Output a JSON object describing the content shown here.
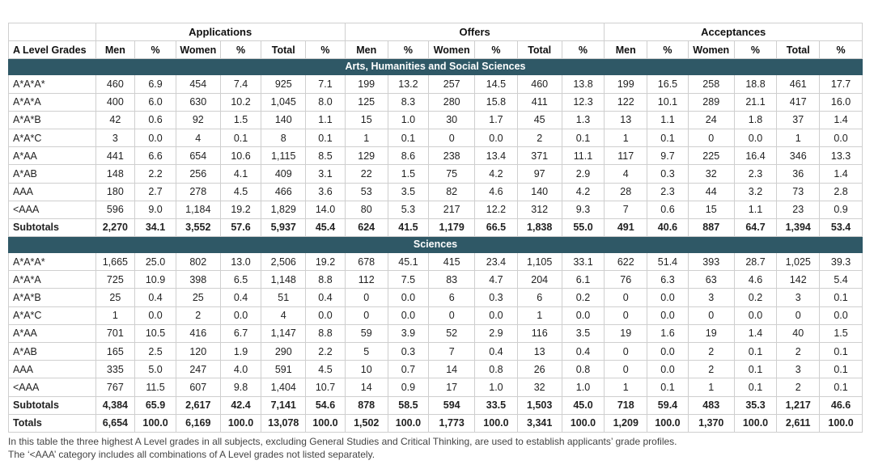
{
  "table": {
    "corner_label": "A Level Grades",
    "groups": [
      {
        "label": "Applications",
        "subs": [
          "Men",
          "%",
          "Women",
          "%",
          "Total",
          "%"
        ]
      },
      {
        "label": "Offers",
        "subs": [
          "Men",
          "%",
          "Women",
          "%",
          "Total",
          "%"
        ]
      },
      {
        "label": "Acceptances",
        "subs": [
          "Men",
          "%",
          "Women",
          "%",
          "Total",
          "%"
        ]
      }
    ],
    "sections": [
      {
        "title": "Arts, Humanities and Social Sciences",
        "rows": [
          {
            "label": "A*A*A*",
            "values": [
              "460",
              "6.9",
              "454",
              "7.4",
              "925",
              "7.1",
              "199",
              "13.2",
              "257",
              "14.5",
              "460",
              "13.8",
              "199",
              "16.5",
              "258",
              "18.8",
              "461",
              "17.7"
            ]
          },
          {
            "label": "A*A*A",
            "values": [
              "400",
              "6.0",
              "630",
              "10.2",
              "1,045",
              "8.0",
              "125",
              "8.3",
              "280",
              "15.8",
              "411",
              "12.3",
              "122",
              "10.1",
              "289",
              "21.1",
              "417",
              "16.0"
            ]
          },
          {
            "label": "A*A*B",
            "values": [
              "42",
              "0.6",
              "92",
              "1.5",
              "140",
              "1.1",
              "15",
              "1.0",
              "30",
              "1.7",
              "45",
              "1.3",
              "13",
              "1.1",
              "24",
              "1.8",
              "37",
              "1.4"
            ]
          },
          {
            "label": "A*A*C",
            "values": [
              "3",
              "0.0",
              "4",
              "0.1",
              "8",
              "0.1",
              "1",
              "0.1",
              "0",
              "0.0",
              "2",
              "0.1",
              "1",
              "0.1",
              "0",
              "0.0",
              "1",
              "0.0"
            ]
          },
          {
            "label": "A*AA",
            "values": [
              "441",
              "6.6",
              "654",
              "10.6",
              "1,115",
              "8.5",
              "129",
              "8.6",
              "238",
              "13.4",
              "371",
              "11.1",
              "117",
              "9.7",
              "225",
              "16.4",
              "346",
              "13.3"
            ]
          },
          {
            "label": "A*AB",
            "values": [
              "148",
              "2.2",
              "256",
              "4.1",
              "409",
              "3.1",
              "22",
              "1.5",
              "75",
              "4.2",
              "97",
              "2.9",
              "4",
              "0.3",
              "32",
              "2.3",
              "36",
              "1.4"
            ]
          },
          {
            "label": "AAA",
            "values": [
              "180",
              "2.7",
              "278",
              "4.5",
              "466",
              "3.6",
              "53",
              "3.5",
              "82",
              "4.6",
              "140",
              "4.2",
              "28",
              "2.3",
              "44",
              "3.2",
              "73",
              "2.8"
            ]
          },
          {
            "label": "<AAA",
            "values": [
              "596",
              "9.0",
              "1,184",
              "19.2",
              "1,829",
              "14.0",
              "80",
              "5.3",
              "217",
              "12.2",
              "312",
              "9.3",
              "7",
              "0.6",
              "15",
              "1.1",
              "23",
              "0.9"
            ]
          }
        ],
        "subtotal": {
          "label": "Subtotals",
          "values": [
            "2,270",
            "34.1",
            "3,552",
            "57.6",
            "5,937",
            "45.4",
            "624",
            "41.5",
            "1,179",
            "66.5",
            "1,838",
            "55.0",
            "491",
            "40.6",
            "887",
            "64.7",
            "1,394",
            "53.4"
          ]
        }
      },
      {
        "title": "Sciences",
        "rows": [
          {
            "label": "A*A*A*",
            "values": [
              "1,665",
              "25.0",
              "802",
              "13.0",
              "2,506",
              "19.2",
              "678",
              "45.1",
              "415",
              "23.4",
              "1,105",
              "33.1",
              "622",
              "51.4",
              "393",
              "28.7",
              "1,025",
              "39.3"
            ]
          },
          {
            "label": "A*A*A",
            "values": [
              "725",
              "10.9",
              "398",
              "6.5",
              "1,148",
              "8.8",
              "112",
              "7.5",
              "83",
              "4.7",
              "204",
              "6.1",
              "76",
              "6.3",
              "63",
              "4.6",
              "142",
              "5.4"
            ]
          },
          {
            "label": "A*A*B",
            "values": [
              "25",
              "0.4",
              "25",
              "0.4",
              "51",
              "0.4",
              "0",
              "0.0",
              "6",
              "0.3",
              "6",
              "0.2",
              "0",
              "0.0",
              "3",
              "0.2",
              "3",
              "0.1"
            ]
          },
          {
            "label": "A*A*C",
            "values": [
              "1",
              "0.0",
              "2",
              "0.0",
              "4",
              "0.0",
              "0",
              "0.0",
              "0",
              "0.0",
              "1",
              "0.0",
              "0",
              "0.0",
              "0",
              "0.0",
              "0",
              "0.0"
            ]
          },
          {
            "label": "A*AA",
            "values": [
              "701",
              "10.5",
              "416",
              "6.7",
              "1,147",
              "8.8",
              "59",
              "3.9",
              "52",
              "2.9",
              "116",
              "3.5",
              "19",
              "1.6",
              "19",
              "1.4",
              "40",
              "1.5"
            ]
          },
          {
            "label": "A*AB",
            "values": [
              "165",
              "2.5",
              "120",
              "1.9",
              "290",
              "2.2",
              "5",
              "0.3",
              "7",
              "0.4",
              "13",
              "0.4",
              "0",
              "0.0",
              "2",
              "0.1",
              "2",
              "0.1"
            ]
          },
          {
            "label": "AAA",
            "values": [
              "335",
              "5.0",
              "247",
              "4.0",
              "591",
              "4.5",
              "10",
              "0.7",
              "14",
              "0.8",
              "26",
              "0.8",
              "0",
              "0.0",
              "2",
              "0.1",
              "3",
              "0.1"
            ]
          },
          {
            "label": "<AAA",
            "values": [
              "767",
              "11.5",
              "607",
              "9.8",
              "1,404",
              "10.7",
              "14",
              "0.9",
              "17",
              "1.0",
              "32",
              "1.0",
              "1",
              "0.1",
              "1",
              "0.1",
              "2",
              "0.1"
            ]
          }
        ],
        "subtotal": {
          "label": "Subtotals",
          "values": [
            "4,384",
            "65.9",
            "2,617",
            "42.4",
            "7,141",
            "54.6",
            "878",
            "58.5",
            "594",
            "33.5",
            "1,503",
            "45.0",
            "718",
            "59.4",
            "483",
            "35.3",
            "1,217",
            "46.6"
          ]
        }
      }
    ],
    "totals": {
      "label": "Totals",
      "values": [
        "6,654",
        "100.0",
        "6,169",
        "100.0",
        "13,078",
        "100.0",
        "1,502",
        "100.0",
        "1,773",
        "100.0",
        "3,341",
        "100.0",
        "1,209",
        "100.0",
        "1,370",
        "100.0",
        "2,611",
        "100.0"
      ]
    }
  },
  "notes": [
    "In this table the three highest A Level grades in all subjects, excluding General Studies and Critical Thinking, are used to establish applicants’ grade profiles.",
    "The ‘<AAA’ category includes all combinations of A Level grades not listed separately."
  ],
  "colors": {
    "section_band": "#2f5866",
    "border": "#cfcfcf"
  }
}
